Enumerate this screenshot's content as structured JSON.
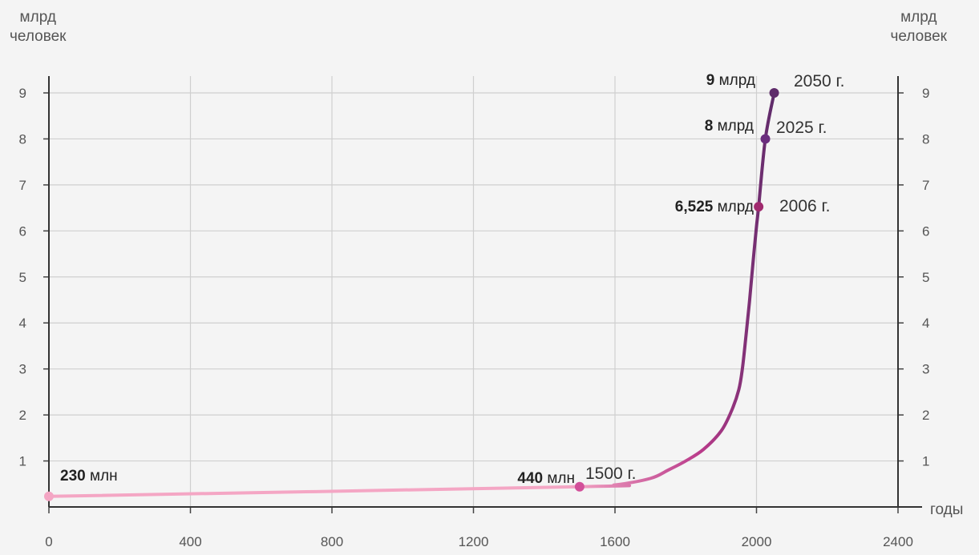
{
  "chart_data": {
    "type": "line",
    "ylabel_left": [
      "млрд",
      "человек"
    ],
    "ylabel_right": [
      "млрд",
      "человек"
    ],
    "xlabel": "годы",
    "xlim": [
      0,
      2400
    ],
    "ylim": [
      0,
      9
    ],
    "x_ticks": [
      "0",
      "400",
      "800",
      "1200",
      "1600",
      "2000",
      "2400"
    ],
    "y_ticks": [
      "1",
      "2",
      "3",
      "4",
      "5",
      "6",
      "7",
      "8",
      "9"
    ],
    "grid": true,
    "series": [
      {
        "x": [
          0,
          1500,
          1600,
          1700,
          1750,
          1800,
          1850,
          1900,
          1930,
          1950,
          1960,
          1970,
          1980,
          1990,
          2000,
          2006,
          2025,
          2050
        ],
        "y": [
          0.23,
          0.44,
          0.48,
          0.62,
          0.8,
          1.0,
          1.25,
          1.65,
          2.1,
          2.55,
          3.0,
          3.7,
          4.45,
          5.3,
          6.1,
          6.525,
          8.0,
          9.0
        ]
      }
    ],
    "points": [
      {
        "x": 0,
        "y": 0.23,
        "value_bold": "230",
        "value_unit": " млн",
        "year": "",
        "color": "#f4a6c4"
      },
      {
        "x": 1500,
        "y": 0.44,
        "value_bold": "440",
        "value_unit": " млн",
        "year": "1500 г.",
        "color": "#d2509a"
      },
      {
        "x": 2006,
        "y": 6.525,
        "value_bold": "6,525",
        "value_unit": " млрд",
        "year": "2006 г.",
        "color": "#a02a6e"
      },
      {
        "x": 2025,
        "y": 8.0,
        "value_bold": "8",
        "value_unit": " млрд",
        "year": "2025 г.",
        "color": "#6b2d7e"
      },
      {
        "x": 2050,
        "y": 9.0,
        "value_bold": "9",
        "value_unit": " млрд",
        "year": "2050 г.",
        "color": "#5e2b6a"
      }
    ],
    "colors": {
      "start": "#f4a6c4",
      "mid": "#b93a8a",
      "end": "#5e2b6a"
    }
  }
}
